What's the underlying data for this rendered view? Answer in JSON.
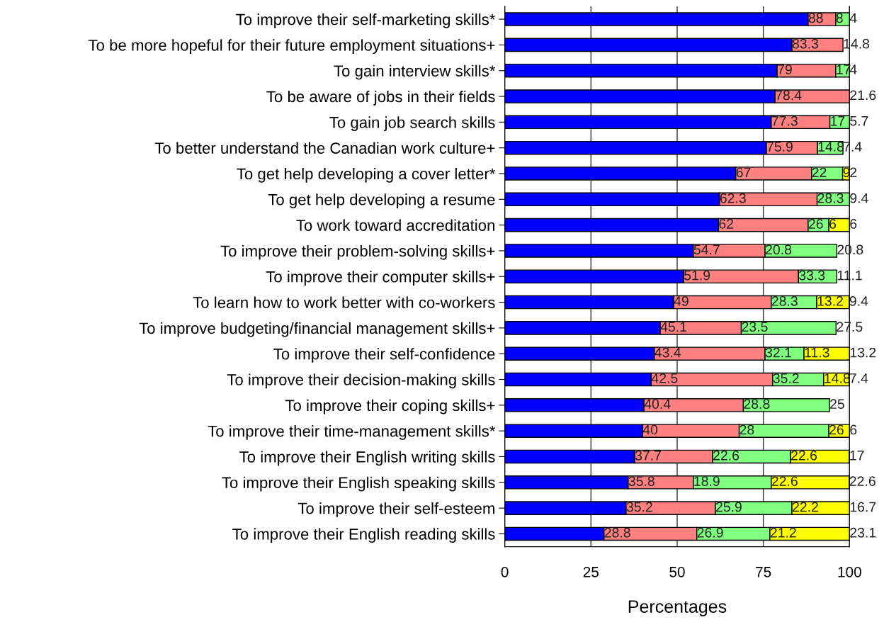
{
  "chart_data": {
    "type": "bar",
    "orientation": "horizontal",
    "stacked": true,
    "xlabel": "Percentages",
    "categories": [
      "To improve their self-marketing skills*",
      "To be more hopeful for their future employment situations+",
      "To gain interview skills*",
      "To be aware of jobs in their fields",
      "To gain job search skills",
      "To better understand the Canadian work culture+",
      "To get help developing a cover letter*",
      "To get help developing a resume",
      "To work toward accreditation",
      "To improve their problem-solving skills+",
      "To improve their computer skills+",
      "To learn how to work better with co-workers",
      "To improve budgeting/financial management skills+",
      "To improve their self-confidence",
      "To improve their decision-making skills",
      "To improve their coping skills+",
      "To improve their time-management skills*",
      "To improve their English writing skills",
      "To improve their English speaking skills",
      "To improve their self-esteem",
      "To improve their English reading skills"
    ],
    "series": [
      {
        "color": "#0000ff",
        "values": [
          88,
          83.3,
          79,
          78.4,
          77.3,
          75.9,
          67,
          62.3,
          62,
          54.7,
          51.9,
          49,
          45.1,
          43.4,
          42.5,
          40.4,
          40,
          37.7,
          35.8,
          35.2,
          28.8
        ]
      },
      {
        "color": "#ff8080",
        "values": [
          8,
          14.8,
          17,
          21.6,
          17,
          14.8,
          22,
          28.3,
          26,
          20.8,
          33.3,
          28.3,
          23.5,
          32.1,
          35.2,
          28.8,
          28,
          22.6,
          18.9,
          25.9,
          26.9
        ]
      },
      {
        "color": "#80ff80",
        "values": [
          4,
          null,
          4,
          null,
          5.7,
          7.4,
          9,
          9.4,
          6,
          20.8,
          11.1,
          13.2,
          27.5,
          11.3,
          14.8,
          25,
          26,
          22.6,
          22.6,
          22.2,
          21.2
        ]
      },
      {
        "color": "#ffff00",
        "values": [
          null,
          null,
          null,
          null,
          null,
          null,
          2,
          null,
          6,
          null,
          null,
          9.4,
          null,
          13.2,
          7.4,
          null,
          6,
          17,
          22.6,
          16.7,
          23.1
        ]
      }
    ],
    "xlim": [
      0,
      100
    ],
    "xticks": [
      0,
      25,
      50,
      75,
      100
    ],
    "grid": "x",
    "data_labels": true,
    "legend": false
  }
}
